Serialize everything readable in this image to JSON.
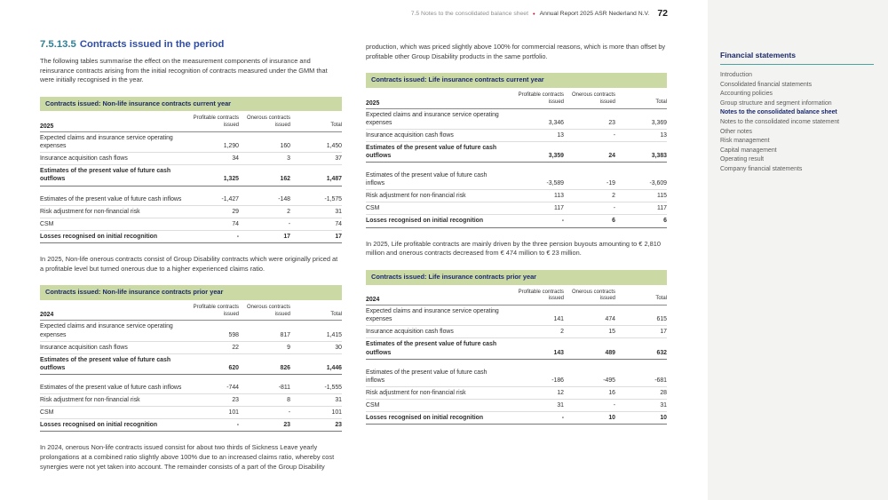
{
  "header": {
    "breadcrumb": "7.5 Notes to the consolidated balance sheet",
    "separator": "•",
    "report_title": "Annual Report 2025 ASR Nederland N.V.",
    "page_number": "72"
  },
  "icons": {
    "back_chevron": "‹",
    "menu": "≡",
    "forward_chevron": "›"
  },
  "colors": {
    "table_header_green": "#cbd9a5",
    "navy": "#1b2a6b",
    "section_number_teal": "#2f7f93",
    "section_title_blue": "#2f4da8",
    "accent_red": "#c8102e",
    "sidebar_bg": "#f3f3f1",
    "sidebar_rule_teal": "#49a3a0"
  },
  "sidebar": {
    "title": "Financial statements",
    "items": [
      {
        "label": "Introduction",
        "active": false
      },
      {
        "label": "Consolidated financial statements",
        "active": false
      },
      {
        "label": "Accounting policies",
        "active": false
      },
      {
        "label": "Group structure and segment information",
        "active": false
      },
      {
        "label": "Notes to the consolidated balance sheet",
        "active": true
      },
      {
        "label": "Notes to the consolidated income statement",
        "active": false
      },
      {
        "label": "Other notes",
        "active": false
      },
      {
        "label": "Risk management",
        "active": false
      },
      {
        "label": "Capital management",
        "active": false
      },
      {
        "label": "Operating result",
        "active": false
      },
      {
        "label": "Company financial statements",
        "active": false
      }
    ]
  },
  "section": {
    "number": "7.5.13.5",
    "title": "Contracts issued in the period",
    "intro": "The following tables summarise the effect on the measurement components of insurance and reinsurance contracts arising from the initial recognition of contracts measured under the GMM that were initially recognised in the year."
  },
  "paragraphs": {
    "nonlife_2025_note": "In 2025, Non-life onerous contracts consist of Group Disability contracts which were originally priced at a profitable level but turned onerous due to a higher experienced claims ratio.",
    "nonlife_2024_note": "In 2024, onerous Non-life contracts issued consist for about two thirds of Sickness Leave yearly prolongations at a combined ratio slightly above 100% due to an increased claims ratio, whereby cost synergies were not yet taken into account. The remainder consists of a part of the Group Disability",
    "right_continuation": "production, which was priced slightly above 100% for commercial reasons, which is more than offset by profitable other Group Disability products in the same portfolio.",
    "life_2025_note": "In 2025, Life profitable contracts are mainly driven by the three pension buyouts amounting to € 2,810 million and onerous contracts decreased from € 474 million to € 23 million."
  },
  "tables": [
    {
      "title": "Contracts issued: Non-life insurance contracts current year",
      "year": "2025",
      "col_headers": [
        "Profitable contracts issued",
        "Onerous contracts issued",
        "Total"
      ],
      "rows": [
        {
          "label": "Expected claims and insurance service operating expenses",
          "values": [
            "1,290",
            "160",
            "1,450"
          ],
          "bold": false
        },
        {
          "label": "Insurance acquisition cash flows",
          "values": [
            "34",
            "3",
            "37"
          ],
          "bold": false
        },
        {
          "label": "Estimates of the present value of future cash outflows",
          "values": [
            "1,325",
            "162",
            "1,487"
          ],
          "bold": true
        },
        {
          "label": "Estimates of the present value of future cash inflows",
          "values": [
            "-1,427",
            "-148",
            "-1,575"
          ],
          "bold": false,
          "gap": true
        },
        {
          "label": "Risk adjustment for non-financial risk",
          "values": [
            "29",
            "2",
            "31"
          ],
          "bold": false
        },
        {
          "label": "CSM",
          "values": [
            "74",
            "-",
            "74"
          ],
          "bold": false
        },
        {
          "label": "Losses recognised on initial recognition",
          "values": [
            "-",
            "17",
            "17"
          ],
          "bold": true
        }
      ]
    },
    {
      "title": "Contracts issued: Non-life insurance contracts prior year",
      "year": "2024",
      "col_headers": [
        "Profitable contracts issued",
        "Onerous contracts issued",
        "Total"
      ],
      "rows": [
        {
          "label": "Expected claims and insurance service operating expenses",
          "values": [
            "598",
            "817",
            "1,415"
          ],
          "bold": false
        },
        {
          "label": "Insurance acquisition cash flows",
          "values": [
            "22",
            "9",
            "30"
          ],
          "bold": false
        },
        {
          "label": "Estimates of the present value of future cash outflows",
          "values": [
            "620",
            "826",
            "1,446"
          ],
          "bold": true
        },
        {
          "label": "Estimates of the present value of future cash inflows",
          "values": [
            "-744",
            "-811",
            "-1,555"
          ],
          "bold": false,
          "gap": true
        },
        {
          "label": "Risk adjustment for non-financial risk",
          "values": [
            "23",
            "8",
            "31"
          ],
          "bold": false
        },
        {
          "label": "CSM",
          "values": [
            "101",
            "-",
            "101"
          ],
          "bold": false
        },
        {
          "label": "Losses recognised on initial recognition",
          "values": [
            "-",
            "23",
            "23"
          ],
          "bold": true
        }
      ]
    },
    {
      "title": "Contracts issued: Life insurance contracts current year",
      "year": "2025",
      "col_headers": [
        "Profitable contracts issued",
        "Onerous contracts issued",
        "Total"
      ],
      "rows": [
        {
          "label": "Expected claims and insurance service operating expenses",
          "values": [
            "3,346",
            "23",
            "3,369"
          ],
          "bold": false
        },
        {
          "label": "Insurance acquisition cash flows",
          "values": [
            "13",
            "-",
            "13"
          ],
          "bold": false
        },
        {
          "label": "Estimates of the present value of future cash outflows",
          "values": [
            "3,359",
            "24",
            "3,383"
          ],
          "bold": true
        },
        {
          "label": "Estimates of the present value of future cash inflows",
          "values": [
            "-3,589",
            "-19",
            "-3,609"
          ],
          "bold": false,
          "gap": true
        },
        {
          "label": "Risk adjustment for non-financial risk",
          "values": [
            "113",
            "2",
            "115"
          ],
          "bold": false
        },
        {
          "label": "CSM",
          "values": [
            "117",
            "-",
            "117"
          ],
          "bold": false
        },
        {
          "label": "Losses recognised on initial recognition",
          "values": [
            "-",
            "6",
            "6"
          ],
          "bold": true
        }
      ]
    },
    {
      "title": "Contracts issued: Life insurance contracts prior year",
      "year": "2024",
      "col_headers": [
        "Profitable contracts issued",
        "Onerous contracts issued",
        "Total"
      ],
      "rows": [
        {
          "label": "Expected claims and insurance service operating expenses",
          "values": [
            "141",
            "474",
            "615"
          ],
          "bold": false
        },
        {
          "label": "Insurance acquisition cash flows",
          "values": [
            "2",
            "15",
            "17"
          ],
          "bold": false
        },
        {
          "label": "Estimates of the present value of future cash outflows",
          "values": [
            "143",
            "489",
            "632"
          ],
          "bold": true
        },
        {
          "label": "Estimates of the present value of future cash inflows",
          "values": [
            "-186",
            "-495",
            "-681"
          ],
          "bold": false,
          "gap": true
        },
        {
          "label": "Risk adjustment for non-financial risk",
          "values": [
            "12",
            "16",
            "28"
          ],
          "bold": false
        },
        {
          "label": "CSM",
          "values": [
            "31",
            "-",
            "31"
          ],
          "bold": false
        },
        {
          "label": "Losses recognised on initial recognition",
          "values": [
            "-",
            "10",
            "10"
          ],
          "bold": true
        }
      ]
    }
  ]
}
